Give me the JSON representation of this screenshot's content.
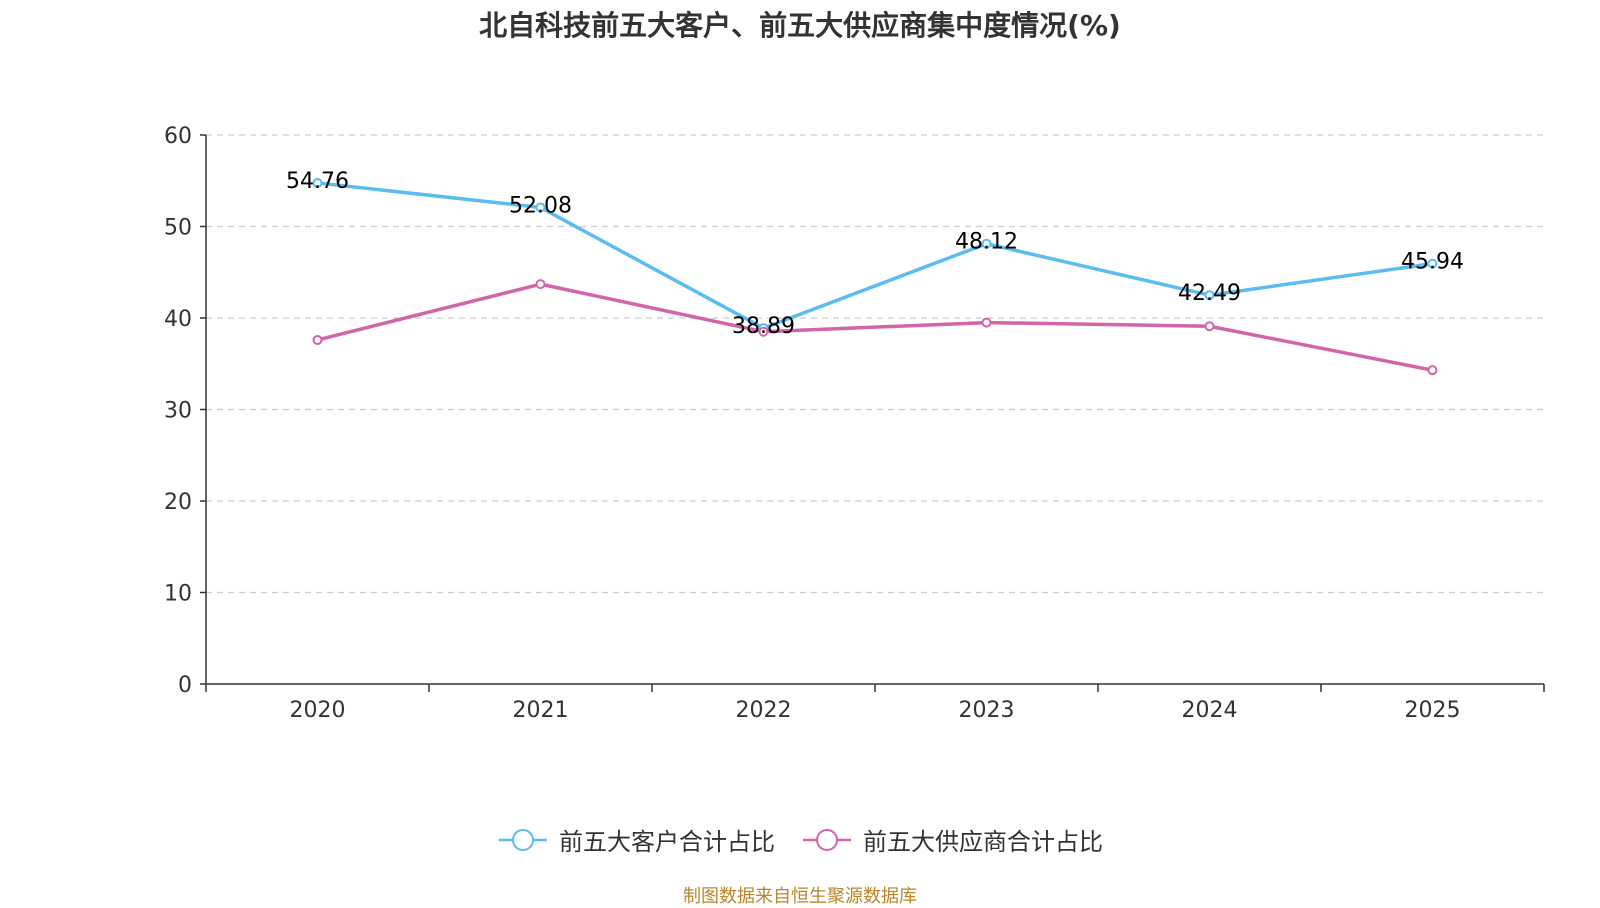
{
  "chart_data": {
    "type": "line",
    "title": "北自科技前五大客户、前五大供应商集中度情况(%)",
    "categories": [
      "2020",
      "2021",
      "2022",
      "2023",
      "2024",
      "2025"
    ],
    "ylim": [
      0,
      60
    ],
    "yticks": [
      "0",
      "10",
      "20",
      "30",
      "40",
      "50",
      "60"
    ],
    "grid": true,
    "legend_position": "bottom",
    "series": [
      {
        "name": "前五大客户合计占比",
        "color": "#5bbcf0",
        "values": [
          54.76,
          52.08,
          38.89,
          48.12,
          42.49,
          45.94
        ],
        "labels": [
          "54.76",
          "52.08",
          "38.89",
          "48.12",
          "42.49",
          "45.94"
        ]
      },
      {
        "name": "前五大供应商合计占比",
        "color": "#d264a8",
        "values": [
          37.6,
          43.7,
          38.5,
          39.5,
          39.1,
          34.3
        ]
      }
    ],
    "source": "制图数据来自恒生聚源数据库"
  }
}
